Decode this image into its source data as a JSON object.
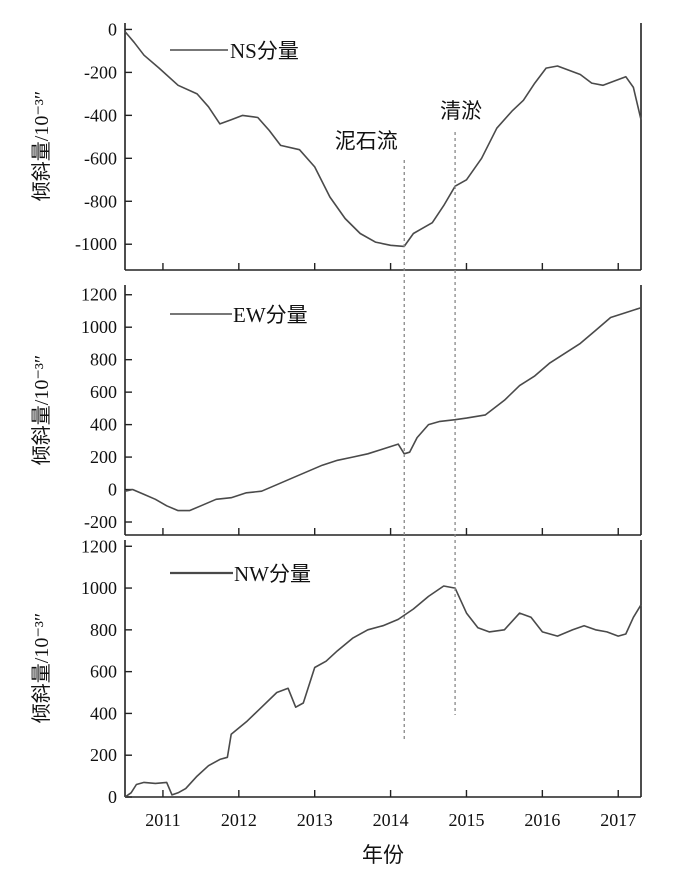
{
  "chart_data": {
    "type": "line",
    "xlabel": "年份",
    "xticks": [
      2011,
      2012,
      2013,
      2014,
      2015,
      2016,
      2017
    ],
    "xtick_labels": [
      "2011",
      "2012",
      "2013",
      "2014",
      "2015",
      "2016",
      "2017"
    ],
    "xlim": [
      2010.5,
      2017.3
    ],
    "annotations": [
      {
        "label": "泥石流",
        "x": 2014.18
      },
      {
        "label": "清淤",
        "x": 2014.85
      }
    ],
    "panels": [
      {
        "id": "ns",
        "legend": "NS分量",
        "ylabel": "倾斜量/10⁻³″",
        "ylim": [
          -1120,
          30
        ],
        "yticks": [
          0,
          -200,
          -400,
          -600,
          -800,
          -1000
        ],
        "ytick_labels": [
          "0",
          "-200",
          "-400",
          "-600",
          "-800",
          "-1000"
        ],
        "x": [
          2010.5,
          2010.62,
          2010.75,
          2010.95,
          2011.2,
          2011.45,
          2011.6,
          2011.75,
          2011.9,
          2012.05,
          2012.25,
          2012.4,
          2012.55,
          2012.8,
          2013.0,
          2013.2,
          2013.4,
          2013.6,
          2013.8,
          2014.0,
          2014.18,
          2014.3,
          2014.4,
          2014.55,
          2014.7,
          2014.85,
          2015.0,
          2015.2,
          2015.4,
          2015.6,
          2015.75,
          2015.9,
          2016.05,
          2016.2,
          2016.35,
          2016.5,
          2016.65,
          2016.8,
          2016.95,
          2017.1,
          2017.2,
          2017.3
        ],
        "values": [
          -10,
          -60,
          -120,
          -180,
          -260,
          -300,
          -360,
          -440,
          -420,
          -400,
          -410,
          -470,
          -540,
          -560,
          -640,
          -780,
          -880,
          -950,
          -990,
          -1005,
          -1010,
          -950,
          -930,
          -900,
          -820,
          -730,
          -700,
          -600,
          -460,
          -380,
          -330,
          -250,
          -180,
          -170,
          -190,
          -210,
          -250,
          -260,
          -240,
          -220,
          -270,
          -420
        ]
      },
      {
        "id": "ew",
        "legend": "EW分量",
        "ylabel": "倾斜量/10⁻³″",
        "ylim": [
          -280,
          1260
        ],
        "yticks": [
          1200,
          1000,
          800,
          600,
          400,
          200,
          0,
          -200
        ],
        "ytick_labels": [
          "1200",
          "1000",
          "800",
          "600",
          "400",
          "200",
          "0",
          "-200"
        ],
        "x": [
          2010.5,
          2010.6,
          2010.75,
          2010.9,
          2011.05,
          2011.2,
          2011.35,
          2011.5,
          2011.7,
          2011.9,
          2012.1,
          2012.3,
          2012.5,
          2012.7,
          2012.9,
          2013.1,
          2013.3,
          2013.5,
          2013.7,
          2013.9,
          2014.1,
          2014.18,
          2014.25,
          2014.35,
          2014.5,
          2014.65,
          2014.85,
          2015.0,
          2015.25,
          2015.5,
          2015.7,
          2015.9,
          2016.1,
          2016.3,
          2016.5,
          2016.7,
          2016.9,
          2017.1,
          2017.3
        ],
        "values": [
          -10,
          0,
          -30,
          -60,
          -100,
          -130,
          -130,
          -100,
          -60,
          -50,
          -20,
          -10,
          30,
          70,
          110,
          150,
          180,
          200,
          220,
          250,
          280,
          220,
          230,
          320,
          400,
          420,
          430,
          440,
          460,
          550,
          640,
          700,
          780,
          840,
          900,
          980,
          1060,
          1090,
          1120
        ]
      },
      {
        "id": "nw",
        "legend": "NW分量",
        "ylabel": "倾斜量/10⁻³″",
        "ylim": [
          0,
          1230
        ],
        "yticks": [
          0,
          200,
          400,
          600,
          800,
          1000,
          1200
        ],
        "ytick_labels": [
          "0",
          "200",
          "400",
          "600",
          "800",
          "1000",
          "1200"
        ],
        "x": [
          2010.5,
          2010.58,
          2010.65,
          2010.75,
          2010.9,
          2011.05,
          2011.12,
          2011.2,
          2011.3,
          2011.45,
          2011.6,
          2011.75,
          2011.85,
          2011.9,
          2012.1,
          2012.3,
          2012.5,
          2012.65,
          2012.75,
          2012.85,
          2013.0,
          2013.15,
          2013.3,
          2013.5,
          2013.7,
          2013.9,
          2014.1,
          2014.3,
          2014.5,
          2014.7,
          2014.85,
          2015.0,
          2015.15,
          2015.3,
          2015.5,
          2015.7,
          2015.85,
          2016.0,
          2016.2,
          2016.4,
          2016.55,
          2016.7,
          2016.85,
          2017.0,
          2017.1,
          2017.2,
          2017.3
        ],
        "values": [
          0,
          20,
          60,
          70,
          65,
          70,
          10,
          20,
          40,
          100,
          150,
          180,
          190,
          300,
          360,
          430,
          500,
          520,
          430,
          450,
          620,
          650,
          700,
          760,
          800,
          820,
          850,
          900,
          960,
          1010,
          1000,
          880,
          810,
          790,
          800,
          880,
          860,
          790,
          770,
          800,
          820,
          800,
          790,
          770,
          780,
          860,
          920
        ]
      }
    ]
  }
}
